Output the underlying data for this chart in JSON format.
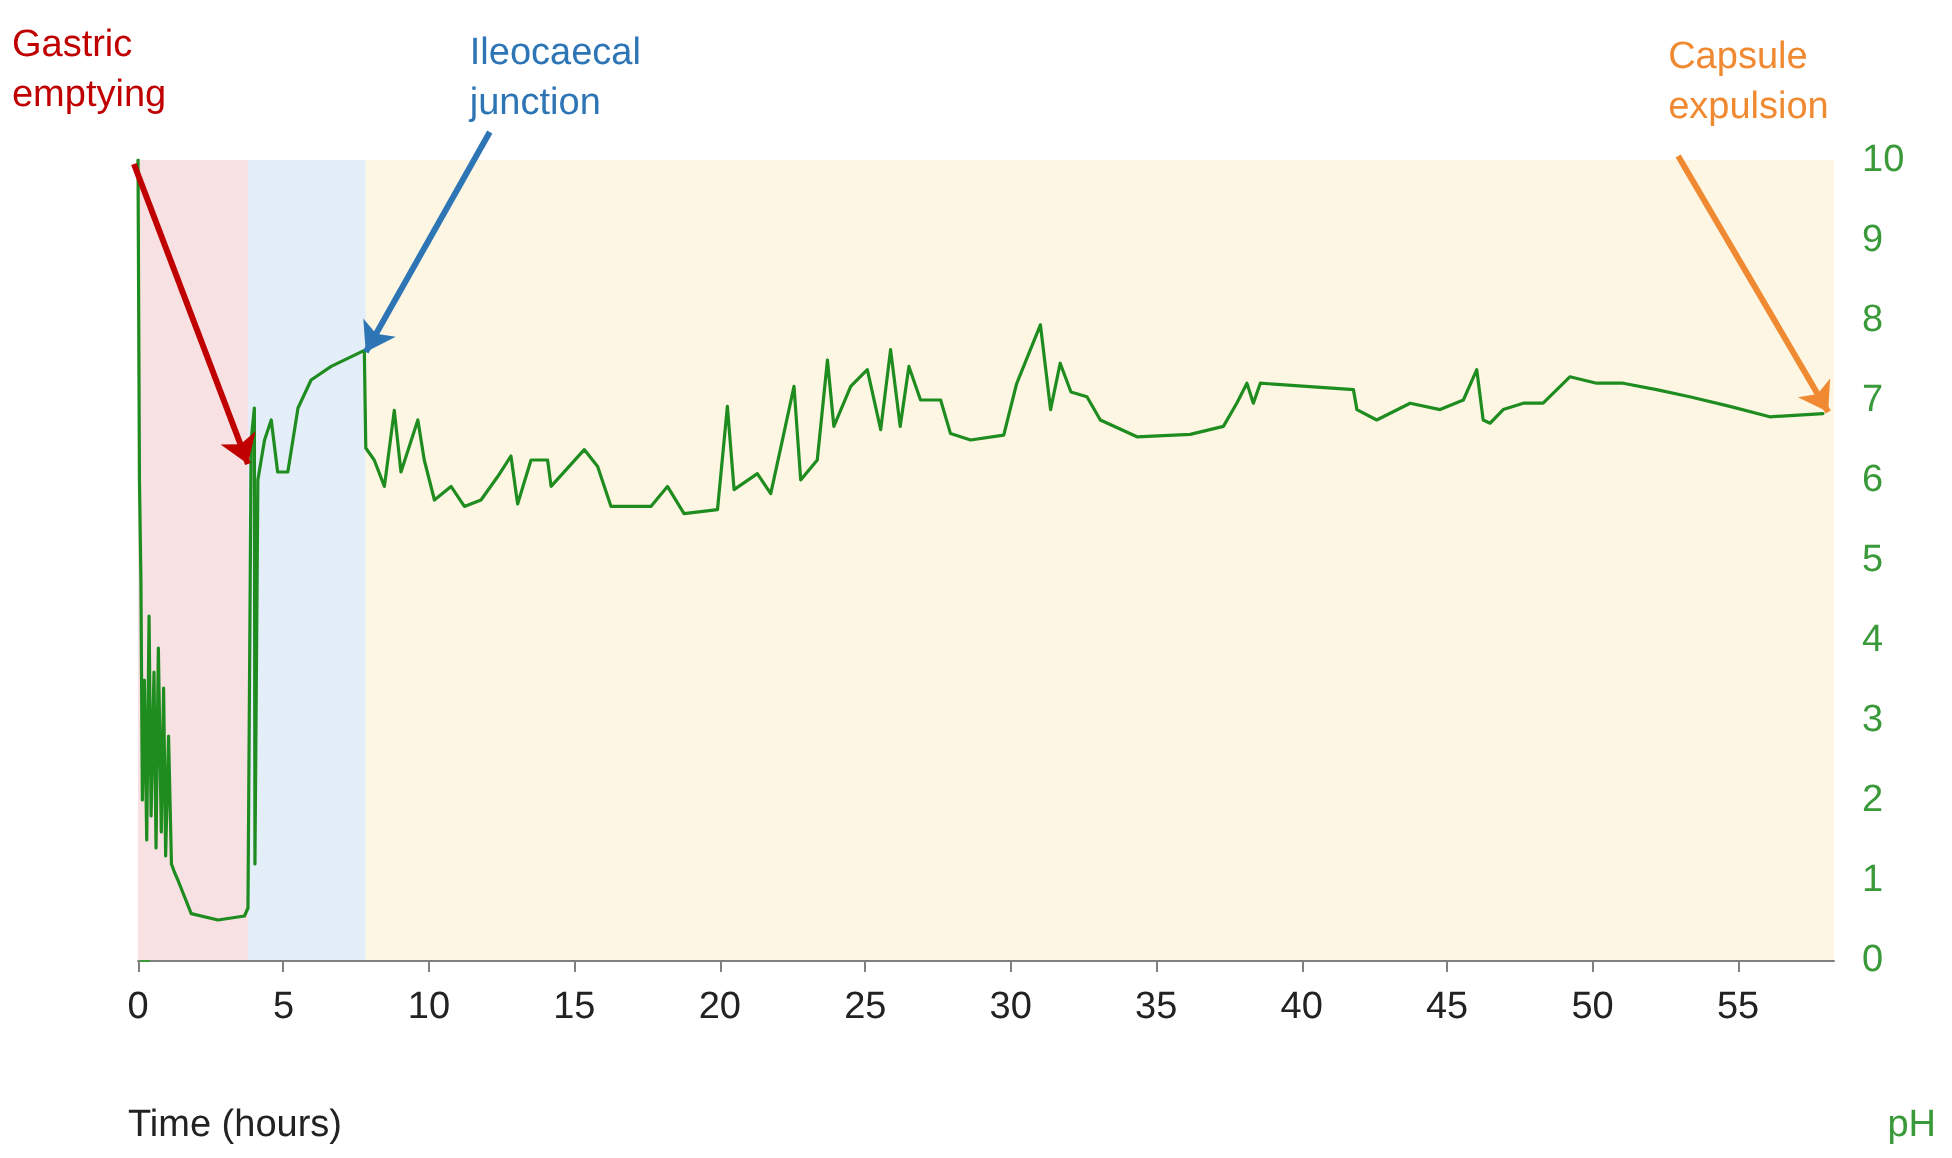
{
  "chart_data": {
    "type": "line",
    "xlabel": "Time (hours)",
    "ylabel": "pH",
    "x": [
      0,
      0.05,
      0.1,
      0.15,
      0.22,
      0.3,
      0.38,
      0.45,
      0.55,
      0.62,
      0.7,
      0.8,
      0.88,
      0.95,
      1.05,
      1.15,
      1.25,
      1.37,
      1.83,
      2.75,
      3.66,
      3.78,
      3.89,
      4.0,
      4.02,
      4.12,
      4.35,
      4.58,
      4.8,
      5.15,
      5.5,
      5.95,
      6.64,
      7.55,
      7.78,
      7.83,
      8.12,
      8.47,
      8.81,
      9.04,
      9.62,
      9.84,
      10.19,
      10.76,
      11.22,
      11.79,
      12.36,
      12.82,
      13.05,
      13.51,
      14.08,
      14.2,
      15.34,
      15.8,
      16.26,
      17.63,
      18.2,
      18.77,
      19.92,
      20.26,
      20.49,
      21.29,
      21.75,
      22.2,
      22.55,
      22.78,
      23.35,
      23.7,
      23.92,
      24.5,
      25.07,
      25.53,
      25.87,
      26.2,
      26.5,
      26.9,
      27.59,
      27.93,
      28.62,
      29.76,
      30.2,
      31.02,
      31.37,
      31.7,
      32.07,
      32.62,
      33.08,
      34.34,
      36.17,
      37.31,
      37.77,
      38.12,
      38.34,
      38.58,
      41.78,
      41.9,
      42.58,
      43.73,
      44.76,
      45.56,
      46.02,
      46.24,
      46.48,
      46.93,
      47.62,
      48.3,
      49.22,
      50.14,
      51.05,
      52.2,
      53.34,
      54.72,
      56.09,
      57.92
    ],
    "series": [
      {
        "color": "#1e8c1e",
        "values": [
          10,
          6,
          4.75,
          2,
          3.5,
          1.5,
          4.3,
          1.8,
          3.6,
          1.4,
          3.9,
          1.6,
          3.4,
          1.3,
          2.8,
          1.2,
          1.1,
          1,
          0.58,
          0.5,
          0.55,
          0.65,
          6.5,
          6.9,
          1.2,
          6,
          6.5,
          6.75,
          6.1,
          6.1,
          6.9,
          7.25,
          7.42,
          7.58,
          7.62,
          6.4,
          6.25,
          5.92,
          6.87,
          6.1,
          6.75,
          6.25,
          5.75,
          5.92,
          5.67,
          5.75,
          6.04,
          6.3,
          5.7,
          6.25,
          6.25,
          5.92,
          6.38,
          6.17,
          5.67,
          5.67,
          5.92,
          5.58,
          5.63,
          6.92,
          5.88,
          6.08,
          5.83,
          6.58,
          7.17,
          6,
          6.25,
          7.5,
          6.67,
          7.17,
          7.38,
          6.63,
          7.63,
          6.67,
          7.42,
          7,
          7,
          6.58,
          6.5,
          6.56,
          7.2,
          7.94,
          6.88,
          7.46,
          7.1,
          7.04,
          6.75,
          6.54,
          6.57,
          6.67,
          6.96,
          7.21,
          6.96,
          7.21,
          7.13,
          6.88,
          6.75,
          6.96,
          6.88,
          7,
          7.38,
          6.75,
          6.71,
          6.88,
          6.96,
          6.96,
          7.29,
          7.21,
          7.21,
          7.13,
          7.04,
          6.92,
          6.79,
          6.83
        ]
      }
    ],
    "xlim": [
      0,
      58.3
    ],
    "xticks": [
      0,
      5,
      10,
      15,
      20,
      25,
      30,
      35,
      40,
      45,
      50,
      55
    ],
    "ylim": [
      0,
      10
    ],
    "yticks": [
      0,
      1,
      2,
      3,
      4,
      5,
      6,
      7,
      8,
      9,
      10
    ],
    "bands": [
      {
        "axis": "x",
        "from": 0,
        "to": 3.78,
        "color": "#f8e1e3"
      },
      {
        "axis": "x",
        "from": 3.78,
        "to": 7.83,
        "color": "#e3eef8"
      },
      {
        "axis": "x",
        "from": 7.83,
        "to": 58.3,
        "color": "#fdf6e3"
      }
    ],
    "annotations": [
      {
        "text": "Gastric emptying",
        "x": 3.78,
        "y": 6.2
      },
      {
        "text": "Ileocaecal junction",
        "x": 7.83,
        "y": 7.6
      },
      {
        "text": "Capsule expulsion",
        "x": 58.1,
        "y": 6.85
      }
    ],
    "grid": false,
    "marker": "none",
    "line_style": "solid"
  }
}
